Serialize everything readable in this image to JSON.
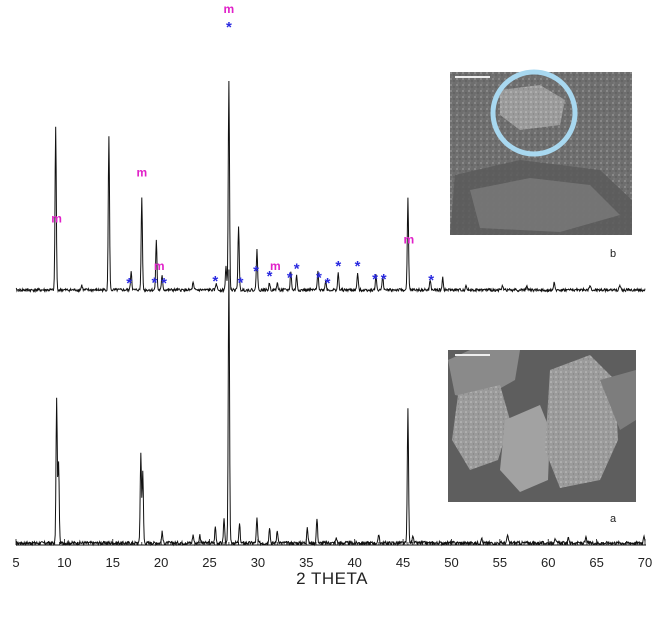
{
  "chart_data": {
    "type": "line",
    "xlabel": "2 THETA",
    "ylabel": "",
    "xlim": [
      5,
      70
    ],
    "x_ticks": [
      "5",
      "10",
      "15",
      "20",
      "25",
      "30",
      "35",
      "40",
      "45",
      "50",
      "55",
      "60",
      "65",
      "70"
    ],
    "grid": false,
    "series": [
      {
        "panel": "a",
        "peaks": [
          {
            "x": 9.2,
            "y": 0.53
          },
          {
            "x": 9.4,
            "y": 0.3
          },
          {
            "x": 17.9,
            "y": 0.33
          },
          {
            "x": 18.1,
            "y": 0.26
          },
          {
            "x": 20.1,
            "y": 0.04
          },
          {
            "x": 23.3,
            "y": 0.03
          },
          {
            "x": 24.0,
            "y": 0.03
          },
          {
            "x": 25.6,
            "y": 0.06
          },
          {
            "x": 26.5,
            "y": 0.09
          },
          {
            "x": 27.0,
            "y": 1.0
          },
          {
            "x": 28.1,
            "y": 0.07
          },
          {
            "x": 29.9,
            "y": 0.09
          },
          {
            "x": 31.2,
            "y": 0.06
          },
          {
            "x": 32.0,
            "y": 0.05
          },
          {
            "x": 35.1,
            "y": 0.06
          },
          {
            "x": 36.1,
            "y": 0.09
          },
          {
            "x": 38.1,
            "y": 0.02
          },
          {
            "x": 42.5,
            "y": 0.03
          },
          {
            "x": 45.5,
            "y": 0.49
          },
          {
            "x": 46.0,
            "y": 0.03
          },
          {
            "x": 53.1,
            "y": 0.02
          },
          {
            "x": 55.8,
            "y": 0.03
          },
          {
            "x": 60.7,
            "y": 0.02
          },
          {
            "x": 62.1,
            "y": 0.02
          },
          {
            "x": 63.9,
            "y": 0.02
          },
          {
            "x": 69.9,
            "y": 0.03
          }
        ]
      },
      {
        "panel": "b",
        "peaks": [
          {
            "x": 9.1,
            "y": 0.68
          },
          {
            "x": 11.8,
            "y": 0.02
          },
          {
            "x": 14.6,
            "y": 0.64
          },
          {
            "x": 16.9,
            "y": 0.08
          },
          {
            "x": 18.0,
            "y": 0.39
          },
          {
            "x": 19.5,
            "y": 0.21
          },
          {
            "x": 20.1,
            "y": 0.06
          },
          {
            "x": 23.3,
            "y": 0.03
          },
          {
            "x": 25.7,
            "y": 0.03
          },
          {
            "x": 26.7,
            "y": 0.1
          },
          {
            "x": 27.0,
            "y": 0.87
          },
          {
            "x": 28.0,
            "y": 0.27
          },
          {
            "x": 29.9,
            "y": 0.17
          },
          {
            "x": 31.2,
            "y": 0.03
          },
          {
            "x": 32.0,
            "y": 0.03
          },
          {
            "x": 33.4,
            "y": 0.08
          },
          {
            "x": 34.0,
            "y": 0.06
          },
          {
            "x": 36.2,
            "y": 0.08
          },
          {
            "x": 37.0,
            "y": 0.04
          },
          {
            "x": 38.3,
            "y": 0.07
          },
          {
            "x": 40.3,
            "y": 0.07
          },
          {
            "x": 42.2,
            "y": 0.06
          },
          {
            "x": 42.9,
            "y": 0.06
          },
          {
            "x": 45.5,
            "y": 0.38
          },
          {
            "x": 47.8,
            "y": 0.04
          },
          {
            "x": 49.1,
            "y": 0.05
          },
          {
            "x": 51.5,
            "y": 0.02
          },
          {
            "x": 55.3,
            "y": 0.02
          },
          {
            "x": 57.8,
            "y": 0.02
          },
          {
            "x": 60.6,
            "y": 0.03
          },
          {
            "x": 64.3,
            "y": 0.02
          },
          {
            "x": 67.4,
            "y": 0.02
          }
        ]
      }
    ],
    "annotations_m": [
      9.2,
      18.0,
      19.8,
      27.0,
      31.8,
      45.6
    ],
    "annotations_star": [
      16.7,
      19.3,
      20.3,
      25.6,
      27.0,
      28.2,
      29.8,
      31.2,
      33.3,
      34.0,
      36.3,
      37.2,
      38.3,
      40.3,
      42.1,
      43.0,
      47.9
    ],
    "annotation_colors": {
      "m": "#e020c8",
      "star": "#2a2ae0"
    }
  },
  "labels": {
    "m": "m",
    "star": "*",
    "panel_a": "a",
    "panel_b": "b"
  },
  "colors": {
    "trace": "#111111",
    "circle": "#a8d8f0"
  }
}
